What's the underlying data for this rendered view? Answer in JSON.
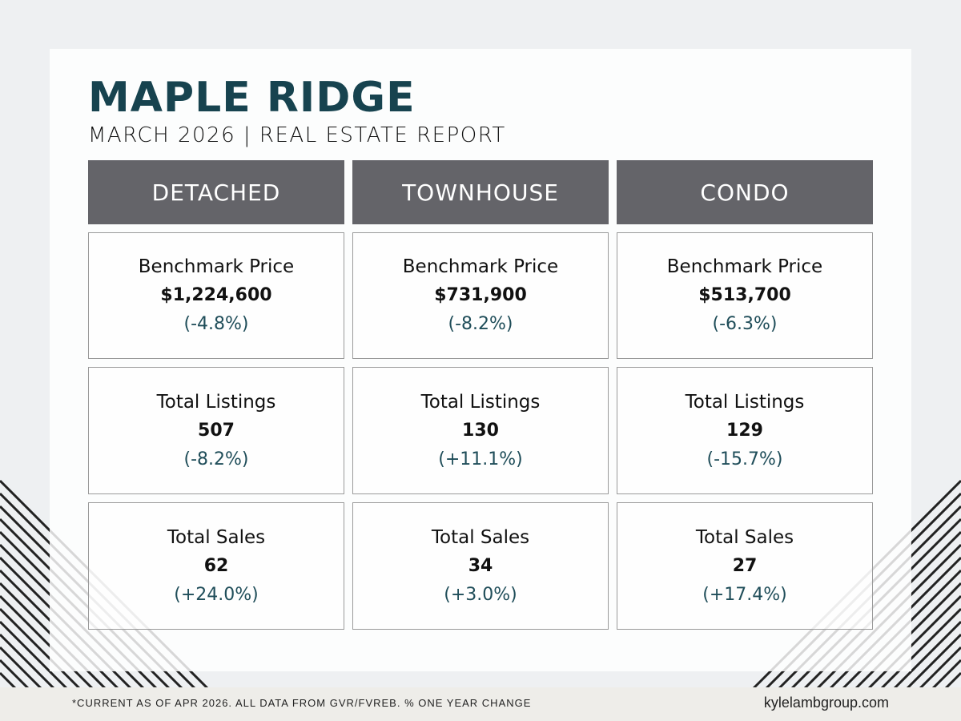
{
  "title": "MAPLE RIDGE",
  "subtitle": "MARCH 2026 | REAL ESTATE REPORT",
  "columns": [
    {
      "name": "DETACHED",
      "metrics": [
        {
          "label": "Benchmark Price",
          "value": "$1,224,600",
          "change": "(-4.8%)"
        },
        {
          "label": "Total Listings",
          "value": "507",
          "change": "(-8.2%)"
        },
        {
          "label": "Total Sales",
          "value": "62",
          "change": "(+24.0%)"
        }
      ]
    },
    {
      "name": "TOWNHOUSE",
      "metrics": [
        {
          "label": "Benchmark Price",
          "value": "$731,900",
          "change": "(-8.2%)"
        },
        {
          "label": "Total Listings",
          "value": "130",
          "change": "(+11.1%)"
        },
        {
          "label": "Total Sales",
          "value": "34",
          "change": "(+3.0%)"
        }
      ]
    },
    {
      "name": "CONDO",
      "metrics": [
        {
          "label": "Benchmark Price",
          "value": "$513,700",
          "change": "(-6.3%)"
        },
        {
          "label": "Total Listings",
          "value": "129",
          "change": "(-15.7%)"
        },
        {
          "label": "Total Sales",
          "value": "27",
          "change": "(+17.4%)"
        }
      ]
    }
  ],
  "footer": {
    "note": "*CURRENT AS  OF APR 2026. ALL DATA FROM GVR/FVREB.  % ONE YEAR CHANGE",
    "site": "kylelambgroup.com"
  },
  "colors": {
    "title": "#17434f",
    "header": "#646469",
    "change": "#1f4d59",
    "footer_bg": "#eeede9"
  }
}
